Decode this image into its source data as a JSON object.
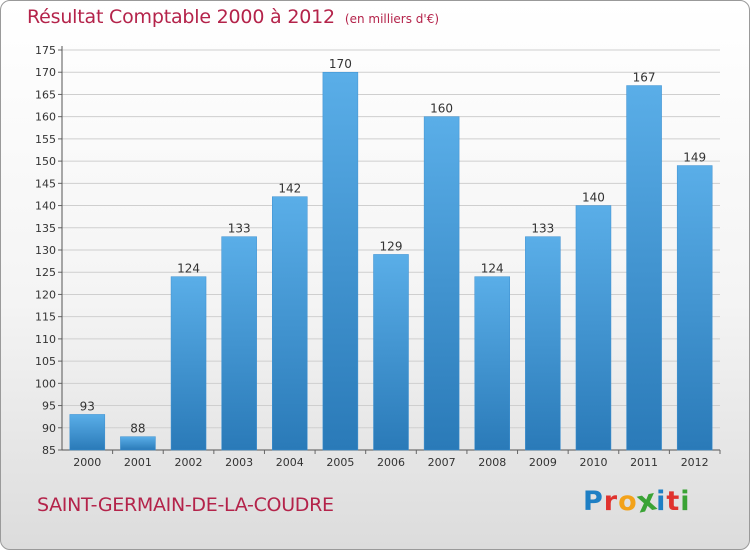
{
  "header": {
    "title": "Résultat Comptable 2000 à 2012",
    "unit": "(en milliers d'€)"
  },
  "footer": {
    "commune": "SAINT-GERMAIN-DE-LA-COUDRE",
    "logo_letters": [
      "P",
      "r",
      "o",
      "x",
      "i",
      "t",
      "i"
    ],
    "logo_colors": [
      "#1e7fc4",
      "#e0322d",
      "#f3a21a",
      "#3aa335",
      "#1e7fc4",
      "#e0322d",
      "#3aa335"
    ]
  },
  "colors": {
    "title": "#b4234a",
    "bar_light": "#5aaee8",
    "bar_dark": "#2a7ab8",
    "grid": "#cfcfcf"
  },
  "chart_data": {
    "type": "bar",
    "title": "Résultat Comptable 2000 à 2012",
    "subtitle": "(en milliers d'€)",
    "categories": [
      "2000",
      "2001",
      "2002",
      "2003",
      "2004",
      "2005",
      "2006",
      "2007",
      "2008",
      "2009",
      "2010",
      "2011",
      "2012"
    ],
    "values": [
      93,
      88,
      124,
      133,
      142,
      170,
      129,
      160,
      124,
      133,
      140,
      167,
      149
    ],
    "ylim": [
      85,
      175
    ],
    "yticks": [
      85,
      90,
      95,
      100,
      105,
      110,
      115,
      120,
      125,
      130,
      135,
      140,
      145,
      150,
      155,
      160,
      165,
      170,
      175
    ],
    "grid": true,
    "data_labels": true
  }
}
